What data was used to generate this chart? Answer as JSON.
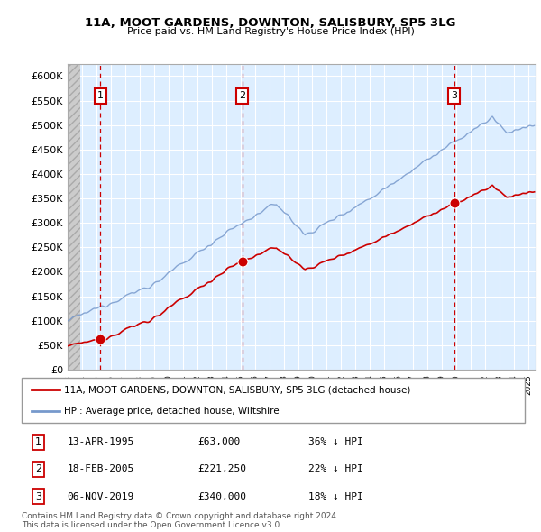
{
  "title1": "11A, MOOT GARDENS, DOWNTON, SALISBURY, SP5 3LG",
  "title2": "Price paid vs. HM Land Registry's House Price Index (HPI)",
  "yticks": [
    0,
    50000,
    100000,
    150000,
    200000,
    250000,
    300000,
    350000,
    400000,
    450000,
    500000,
    550000,
    600000
  ],
  "ylim": [
    0,
    625000
  ],
  "xlim_start": 1993.0,
  "xlim_end": 2025.5,
  "hpi_color": "#7799cc",
  "hpi_fill_color": "#ddeeff",
  "price_color": "#cc0000",
  "vline_color": "#cc0000",
  "grid_color": "#cccccc",
  "bg_color": "#ddeeff",
  "hatch_color": "#c8c8c8",
  "purchases": [
    {
      "date_num": 1995.28,
      "price": 63000,
      "label": "1",
      "date_str": "13-APR-1995",
      "price_str": "£63,000",
      "hpi_str": "36% ↓ HPI"
    },
    {
      "date_num": 2005.12,
      "price": 221250,
      "label": "2",
      "date_str": "18-FEB-2005",
      "price_str": "£221,250",
      "hpi_str": "22% ↓ HPI"
    },
    {
      "date_num": 2019.84,
      "price": 340000,
      "label": "3",
      "date_str": "06-NOV-2019",
      "price_str": "£340,000",
      "hpi_str": "18% ↓ HPI"
    }
  ],
  "legend_label1": "11A, MOOT GARDENS, DOWNTON, SALISBURY, SP5 3LG (detached house)",
  "legend_label2": "HPI: Average price, detached house, Wiltshire",
  "footnote": "Contains HM Land Registry data © Crown copyright and database right 2024.\nThis data is licensed under the Open Government Licence v3.0."
}
